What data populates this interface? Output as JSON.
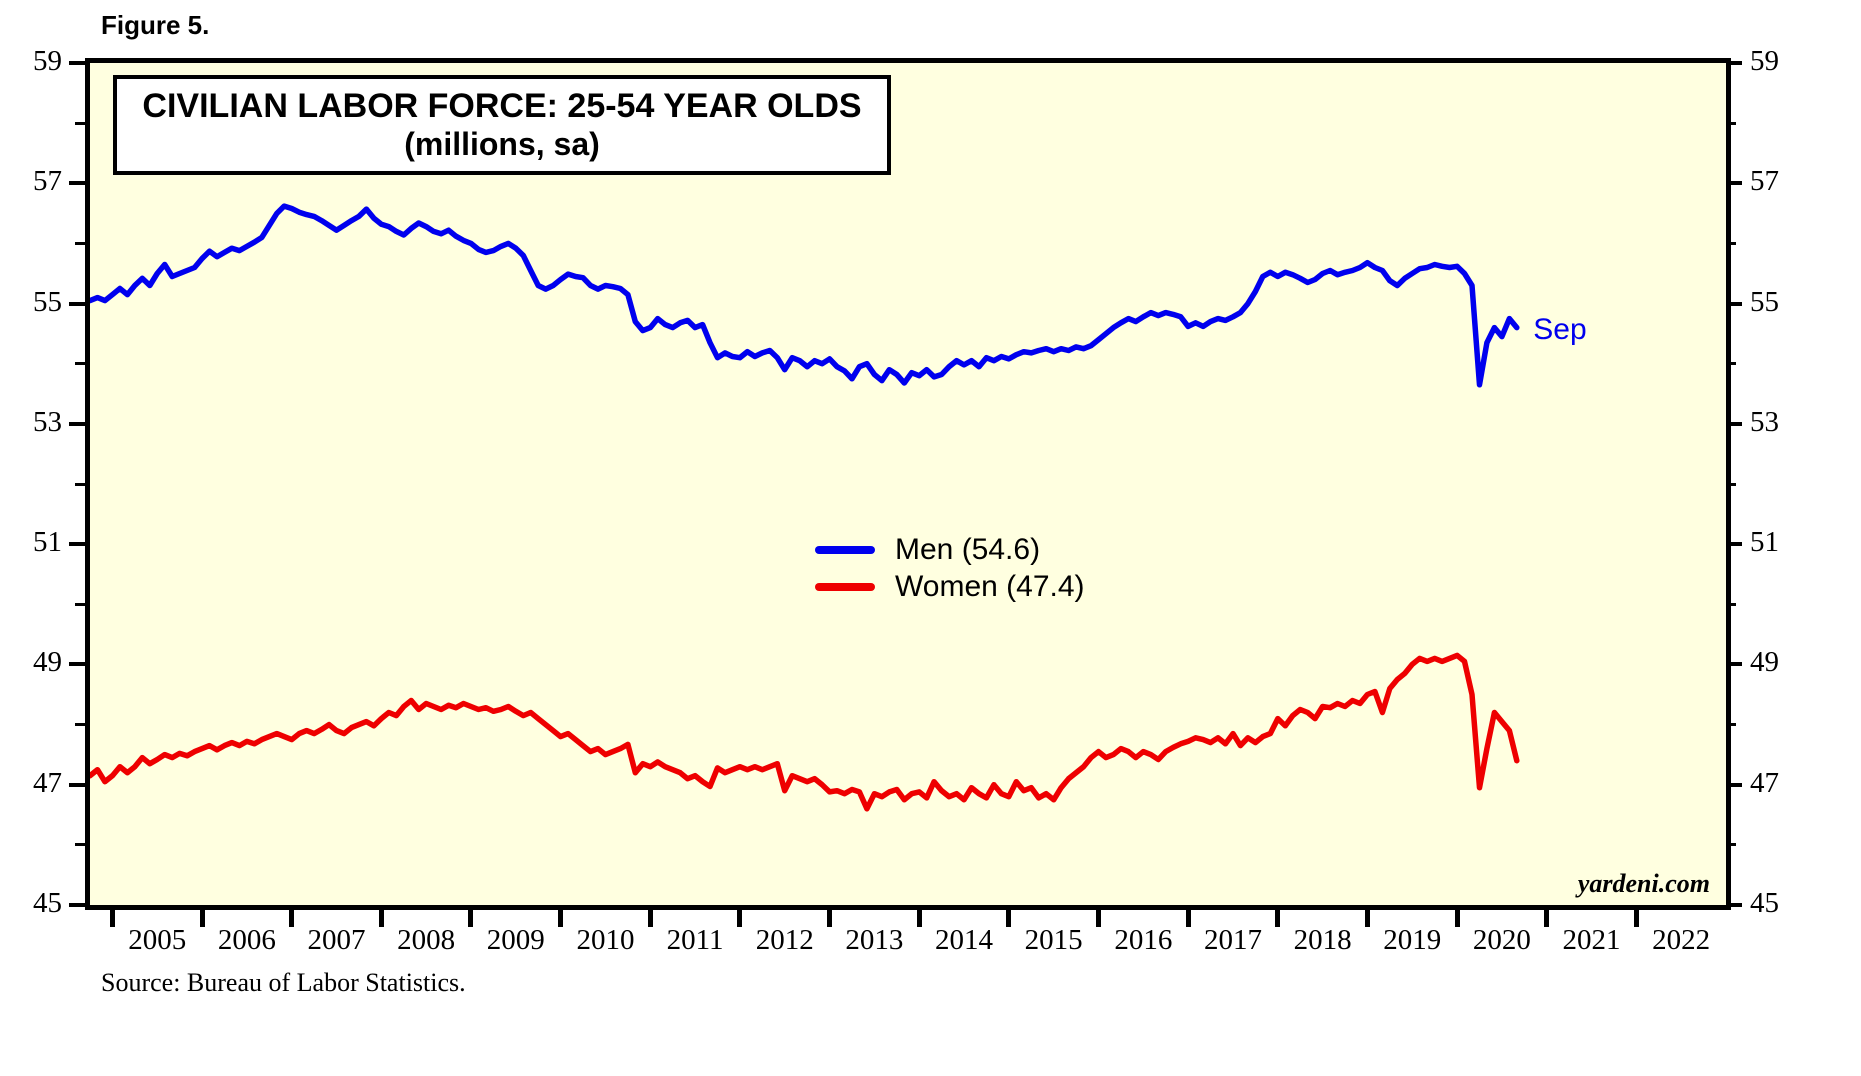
{
  "figure_label": "Figure 5.",
  "source_note": "Source: Bureau of Labor Statistics.",
  "watermark": "yardeni.com",
  "colors": {
    "men_line": "#0000EE",
    "women_line": "#EE0000",
    "plot_background": "#FFFFE0",
    "axis": "#000000"
  },
  "chart_data": {
    "type": "line",
    "title": "CIVILIAN LABOR FORCE: 25-54 YEAR OLDS",
    "subtitle": "(millions, sa)",
    "grid": false,
    "legend_position": "center",
    "x_domain": [
      2004.75,
      2023.0
    ],
    "y_domain": [
      45,
      59
    ],
    "y_ticks_labeled": [
      45,
      47,
      49,
      51,
      53,
      55,
      57,
      59
    ],
    "y_ticks_minor": [
      46,
      48,
      50,
      52,
      54,
      56,
      58
    ],
    "x_tick_years": [
      2005,
      2006,
      2007,
      2008,
      2009,
      2010,
      2011,
      2012,
      2013,
      2014,
      2015,
      2016,
      2017,
      2018,
      2019,
      2020,
      2021,
      2022
    ],
    "annotation": {
      "text": "Sep",
      "x": 2020.85,
      "y": 54.52,
      "color": "#0000EE"
    },
    "series": [
      {
        "name": "Men",
        "label": "Men (54.6)",
        "latest_value": 54.6,
        "color": "#0000EE",
        "start_year": 2004,
        "start_month": 10,
        "frequency": "monthly",
        "values": [
          55.05,
          55.1,
          55.05,
          55.15,
          55.25,
          55.15,
          55.3,
          55.42,
          55.3,
          55.5,
          55.65,
          55.45,
          55.5,
          55.55,
          55.6,
          55.75,
          55.87,
          55.78,
          55.85,
          55.92,
          55.88,
          55.95,
          56.02,
          56.1,
          56.3,
          56.5,
          56.62,
          56.58,
          56.52,
          56.48,
          56.45,
          56.38,
          56.3,
          56.22,
          56.3,
          56.38,
          56.45,
          56.57,
          56.42,
          56.32,
          56.28,
          56.2,
          56.14,
          56.25,
          56.34,
          56.28,
          56.2,
          56.16,
          56.22,
          56.12,
          56.05,
          56.0,
          55.9,
          55.85,
          55.88,
          55.95,
          56.0,
          55.92,
          55.8,
          55.55,
          55.3,
          55.24,
          55.3,
          55.4,
          55.49,
          55.45,
          55.43,
          55.3,
          55.24,
          55.3,
          55.28,
          55.25,
          55.15,
          54.7,
          54.55,
          54.6,
          54.75,
          54.65,
          54.6,
          54.68,
          54.72,
          54.6,
          54.65,
          54.35,
          54.1,
          54.18,
          54.12,
          54.1,
          54.2,
          54.12,
          54.18,
          54.22,
          54.1,
          53.9,
          54.1,
          54.05,
          53.95,
          54.05,
          54.0,
          54.08,
          53.95,
          53.88,
          53.75,
          53.95,
          54.0,
          53.82,
          53.72,
          53.9,
          53.82,
          53.68,
          53.85,
          53.8,
          53.9,
          53.78,
          53.82,
          53.95,
          54.05,
          53.98,
          54.05,
          53.95,
          54.1,
          54.05,
          54.12,
          54.08,
          54.15,
          54.2,
          54.18,
          54.22,
          54.25,
          54.2,
          54.25,
          54.22,
          54.28,
          54.25,
          54.3,
          54.4,
          54.5,
          54.6,
          54.68,
          54.75,
          54.7,
          54.78,
          54.85,
          54.8,
          54.85,
          54.82,
          54.78,
          54.62,
          54.68,
          54.62,
          54.7,
          54.75,
          54.72,
          54.78,
          54.85,
          55.0,
          55.2,
          55.45,
          55.52,
          55.45,
          55.52,
          55.48,
          55.42,
          55.35,
          55.4,
          55.5,
          55.55,
          55.48,
          55.52,
          55.55,
          55.6,
          55.68,
          55.6,
          55.55,
          55.38,
          55.3,
          55.42,
          55.5,
          55.58,
          55.6,
          55.65,
          55.62,
          55.6,
          55.62,
          55.5,
          55.3,
          53.65,
          54.35,
          54.6,
          54.45,
          54.75,
          54.6
        ]
      },
      {
        "name": "Women",
        "label": "Women (47.4)",
        "latest_value": 47.4,
        "color": "#EE0000",
        "start_year": 2004,
        "start_month": 10,
        "frequency": "monthly",
        "values": [
          47.15,
          47.25,
          47.05,
          47.15,
          47.3,
          47.2,
          47.3,
          47.45,
          47.35,
          47.42,
          47.5,
          47.45,
          47.52,
          47.48,
          47.55,
          47.6,
          47.65,
          47.58,
          47.65,
          47.7,
          47.65,
          47.72,
          47.68,
          47.75,
          47.8,
          47.85,
          47.8,
          47.75,
          47.85,
          47.9,
          47.85,
          47.92,
          48.0,
          47.9,
          47.85,
          47.95,
          48.0,
          48.05,
          47.98,
          48.1,
          48.2,
          48.15,
          48.3,
          48.4,
          48.25,
          48.35,
          48.3,
          48.25,
          48.32,
          48.28,
          48.35,
          48.3,
          48.25,
          48.28,
          48.22,
          48.25,
          48.3,
          48.22,
          48.15,
          48.2,
          48.1,
          48.0,
          47.9,
          47.8,
          47.85,
          47.75,
          47.65,
          47.55,
          47.6,
          47.5,
          47.55,
          47.6,
          47.67,
          47.2,
          47.35,
          47.3,
          47.38,
          47.3,
          47.25,
          47.2,
          47.1,
          47.15,
          47.05,
          46.97,
          47.28,
          47.2,
          47.25,
          47.3,
          47.25,
          47.3,
          47.25,
          47.3,
          47.35,
          46.9,
          47.15,
          47.1,
          47.05,
          47.1,
          47.0,
          46.88,
          46.9,
          46.85,
          46.92,
          46.88,
          46.6,
          46.85,
          46.8,
          46.88,
          46.92,
          46.75,
          46.85,
          46.88,
          46.78,
          47.05,
          46.9,
          46.8,
          46.85,
          46.75,
          46.95,
          46.85,
          46.78,
          47.0,
          46.85,
          46.8,
          47.05,
          46.9,
          46.95,
          46.78,
          46.85,
          46.75,
          46.95,
          47.1,
          47.2,
          47.3,
          47.45,
          47.55,
          47.45,
          47.5,
          47.6,
          47.55,
          47.45,
          47.55,
          47.5,
          47.42,
          47.55,
          47.62,
          47.68,
          47.72,
          47.78,
          47.75,
          47.7,
          47.78,
          47.68,
          47.85,
          47.65,
          47.78,
          47.7,
          47.8,
          47.85,
          48.1,
          47.98,
          48.15,
          48.25,
          48.2,
          48.1,
          48.3,
          48.28,
          48.35,
          48.3,
          48.4,
          48.35,
          48.5,
          48.55,
          48.2,
          48.6,
          48.75,
          48.85,
          49.0,
          49.1,
          49.05,
          49.1,
          49.05,
          49.1,
          49.15,
          49.05,
          48.5,
          46.95,
          47.6,
          48.2,
          48.05,
          47.9,
          47.4
        ]
      }
    ]
  }
}
